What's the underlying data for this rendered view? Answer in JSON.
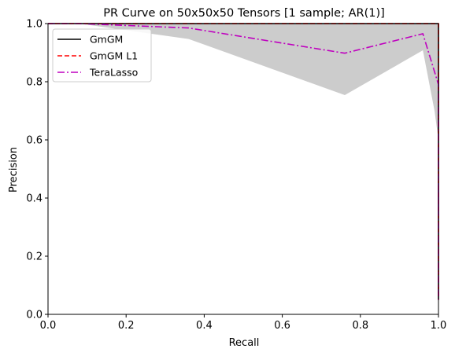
{
  "chart_data": {
    "type": "line",
    "title": "PR Curve on 50x50x50 Tensors [1 sample; AR(1)]",
    "xlabel": "Recall",
    "ylabel": "Precision",
    "xlim": [
      0,
      1
    ],
    "ylim": [
      0,
      1
    ],
    "xticks": [
      0.0,
      0.2,
      0.4,
      0.6,
      0.8,
      1.0
    ],
    "yticks": [
      0.0,
      0.2,
      0.4,
      0.6,
      0.8,
      1.0
    ],
    "xtick_labels": [
      "0.0",
      "0.2",
      "0.4",
      "0.6",
      "0.8",
      "1.0"
    ],
    "ytick_labels": [
      "0.0",
      "0.2",
      "0.4",
      "0.6",
      "0.8",
      "1.0"
    ],
    "grid": false,
    "legend_position": "top-left",
    "band": {
      "color": "#cccccc",
      "upper": [
        [
          0,
          1.0
        ],
        [
          1,
          1.0
        ]
      ],
      "lower": [
        [
          0.0,
          1.0
        ],
        [
          0.08,
          1.0
        ],
        [
          0.36,
          0.947
        ],
        [
          0.76,
          0.754
        ],
        [
          0.96,
          0.908
        ],
        [
          0.99,
          0.7
        ],
        [
          1.0,
          0.6
        ],
        [
          1.0,
          0.4
        ],
        [
          1.0,
          0.05
        ]
      ]
    },
    "series": [
      {
        "name": "GmGM",
        "color": "#000000",
        "style": "solid",
        "x": [
          0.0,
          1.0,
          1.0
        ],
        "y": [
          1.0,
          1.0,
          0.05
        ]
      },
      {
        "name": "GmGM L1",
        "color": "#ff0000",
        "style": "dashed",
        "x": [
          0.0,
          1.0,
          1.0
        ],
        "y": [
          1.0,
          1.0,
          0.05
        ]
      },
      {
        "name": "TeraLasso",
        "color": "#bf00bf",
        "style": "dashdot",
        "x": [
          0.0,
          0.08,
          0.36,
          0.76,
          0.96,
          1.0,
          1.0,
          1.0,
          1.0,
          1.0
        ],
        "y": [
          1.0,
          1.0,
          0.985,
          0.898,
          0.965,
          0.79,
          0.5,
          0.35,
          0.45,
          0.05
        ]
      }
    ]
  }
}
